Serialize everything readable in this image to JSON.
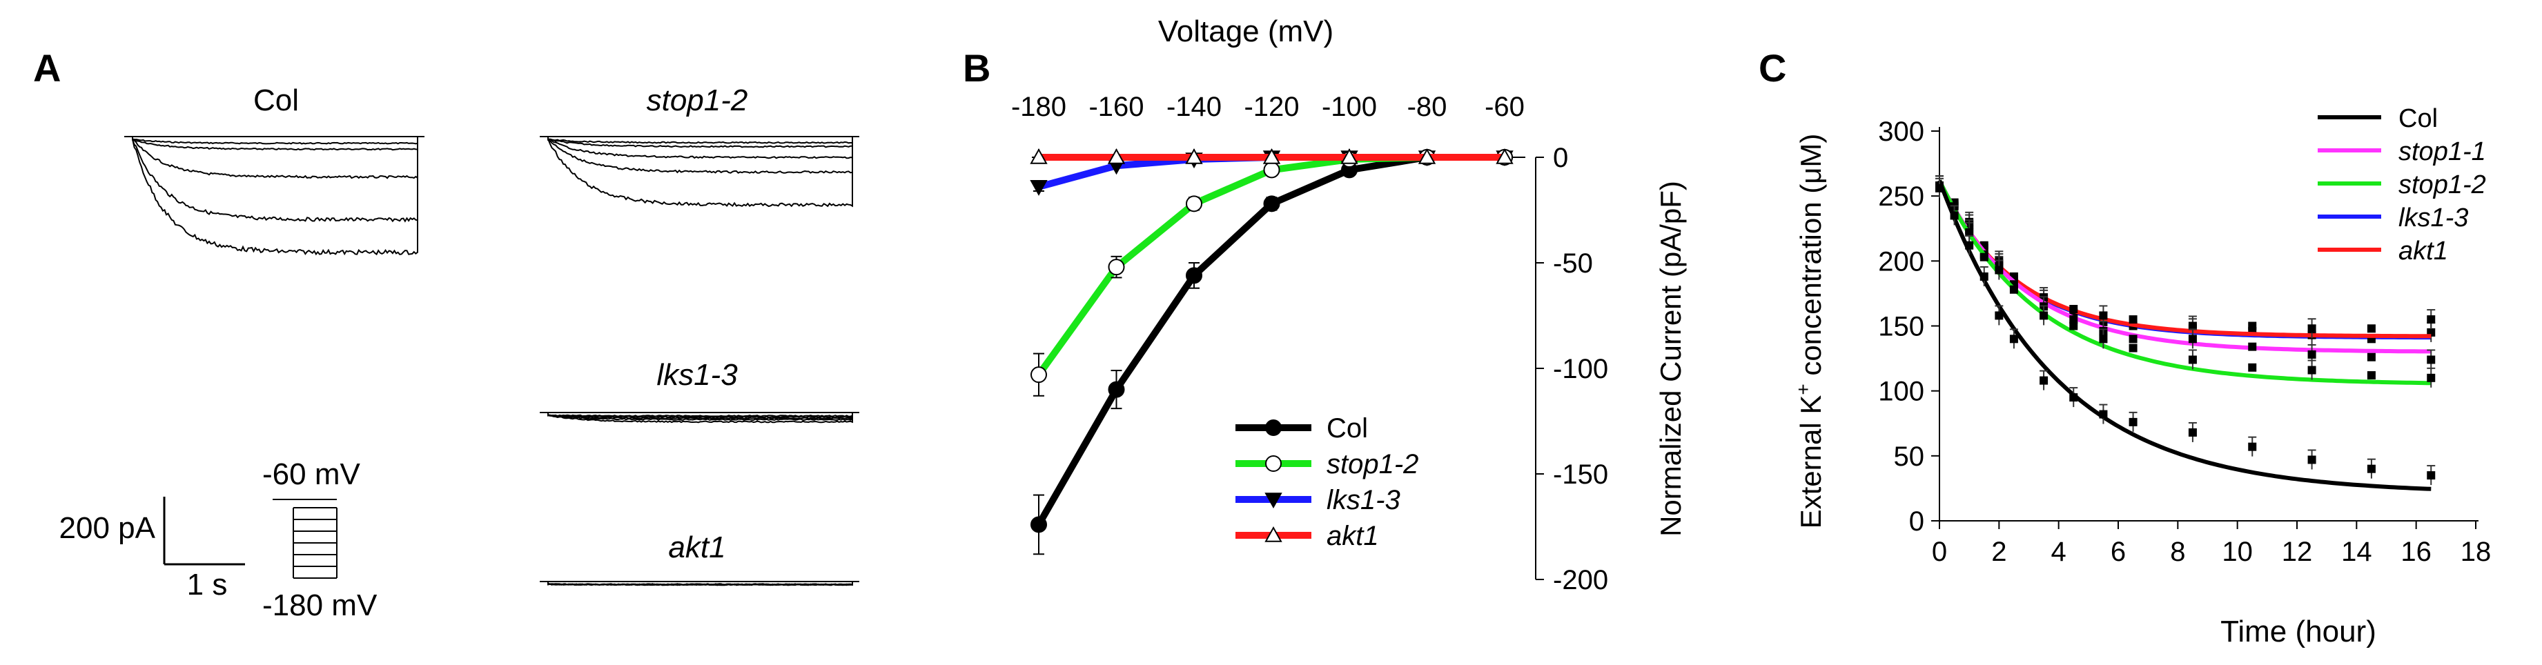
{
  "panels": {
    "A": {
      "letter": "A",
      "traces": [
        {
          "label": "Col",
          "italic": false,
          "peak_pA": [
            12,
            30,
            115,
            245,
            345
          ]
        },
        {
          "label": "stop1-2",
          "italic": true,
          "peak_pA": [
            10,
            22,
            55,
            100,
            200
          ]
        },
        {
          "label": "lks1-3",
          "italic": true,
          "peak_pA": [
            2,
            5,
            9,
            13,
            20
          ]
        },
        {
          "label": "akt1",
          "italic": true,
          "peak_pA": [
            0,
            1,
            1,
            1,
            1
          ]
        }
      ],
      "scalebar": {
        "current": "200 pA",
        "time": "1 s"
      },
      "protocol": {
        "top": "-60 mV",
        "bottom": "-180 mV"
      }
    },
    "B": {
      "letter": "B",
      "x_title": "Voltage (mV)",
      "y_title": "Normalized Current (pA/pF)",
      "x_ticks": [
        "-180",
        "-160",
        "-140",
        "-120",
        "-100",
        "-80",
        "-60"
      ],
      "y_ticks": [
        "0",
        "-50",
        "-100",
        "-150",
        "-200"
      ]
    },
    "C": {
      "letter": "C",
      "x_title": "Time (hour)",
      "y_title_pre": "External K",
      "y_title_sup": "+",
      "y_title_post": " concentration (μM)",
      "x_ticks": [
        "0",
        "2",
        "4",
        "6",
        "8",
        "10",
        "12",
        "14",
        "16",
        "18"
      ],
      "y_ticks": [
        "0",
        "50",
        "100",
        "150",
        "200",
        "250",
        "300"
      ]
    }
  },
  "chart_data": [
    {
      "id": "B",
      "type": "line",
      "title": "",
      "xlabel": "Voltage (mV)",
      "ylabel": "Normalized Current (pA/pF)",
      "xlim": [
        -180,
        -60
      ],
      "ylim": [
        -200,
        0
      ],
      "legend": "bottom-right",
      "x": [
        -180,
        -160,
        -140,
        -120,
        -100,
        -80,
        -60
      ],
      "series": [
        {
          "name": "Col",
          "italic": false,
          "color": "#000000",
          "marker": "filled-circle",
          "values": [
            -174,
            -110,
            -56,
            -22,
            -6,
            0,
            0
          ],
          "errors": [
            14,
            9,
            6,
            3,
            2,
            1,
            1
          ]
        },
        {
          "name": "stop1-2",
          "italic": true,
          "color": "#19e619",
          "marker": "open-circle",
          "values": [
            -103,
            -52,
            -22,
            -6,
            -1,
            0,
            0
          ],
          "errors": [
            10,
            5,
            3,
            2,
            1,
            1,
            1
          ]
        },
        {
          "name": "lks1-3",
          "italic": true,
          "color": "#1a1aff",
          "marker": "filled-triangle-down",
          "values": [
            -14,
            -4,
            -1,
            0,
            0,
            0,
            0
          ],
          "errors": [
            2,
            1,
            1,
            1,
            1,
            1,
            1
          ]
        },
        {
          "name": "akt1",
          "italic": true,
          "color": "#ff1a1a",
          "marker": "open-triangle-up",
          "values": [
            0,
            0,
            0,
            0,
            0,
            0,
            0
          ],
          "errors": [
            1,
            1,
            1,
            1,
            1,
            1,
            1
          ]
        }
      ]
    },
    {
      "id": "C",
      "type": "scatter",
      "title": "",
      "xlabel": "Time (hour)",
      "ylabel": "External K+ concentration (μM)",
      "xlim": [
        0,
        18
      ],
      "ylim": [
        0,
        300
      ],
      "legend": "top-right",
      "x": [
        0,
        0.5,
        1,
        1.5,
        2,
        2.5,
        3.5,
        4.5,
        5.5,
        6.5,
        8.5,
        10.5,
        12.5,
        14.5,
        16.5
      ],
      "series": [
        {
          "name": "Col",
          "italic": false,
          "color": "#000000",
          "values": [
            256,
            235,
            212,
            188,
            158,
            140,
            108,
            95,
            82,
            76,
            68,
            57,
            47,
            40,
            35
          ],
          "fit_infinity": 21,
          "fit_tau": 3.9
        },
        {
          "name": "stop1-1",
          "italic": true,
          "color": "#ff33ff",
          "values": [
            258,
            243,
            224,
            205,
            196,
            182,
            165,
            155,
            146,
            140,
            140,
            134,
            128,
            126,
            124
          ],
          "fit_infinity": 130,
          "fit_tau": 2.8
        },
        {
          "name": "stop1-2",
          "italic": true,
          "color": "#19e619",
          "values": [
            258,
            242,
            222,
            203,
            193,
            178,
            158,
            150,
            140,
            133,
            124,
            118,
            116,
            112,
            110
          ],
          "fit_infinity": 105,
          "fit_tau": 3.3
        },
        {
          "name": "lks1-3",
          "italic": true,
          "color": "#1a1aff",
          "values": [
            258,
            244,
            228,
            210,
            198,
            186,
            170,
            160,
            153,
            150,
            148,
            146,
            143,
            140,
            145
          ],
          "fit_infinity": 141,
          "fit_tau": 2.5
        },
        {
          "name": "akt1",
          "italic": true,
          "color": "#ff1a1a",
          "values": [
            258,
            245,
            230,
            212,
            200,
            188,
            172,
            163,
            158,
            155,
            150,
            150,
            148,
            148,
            155
          ],
          "fit_infinity": 142,
          "fit_tau": 2.5
        }
      ]
    }
  ]
}
